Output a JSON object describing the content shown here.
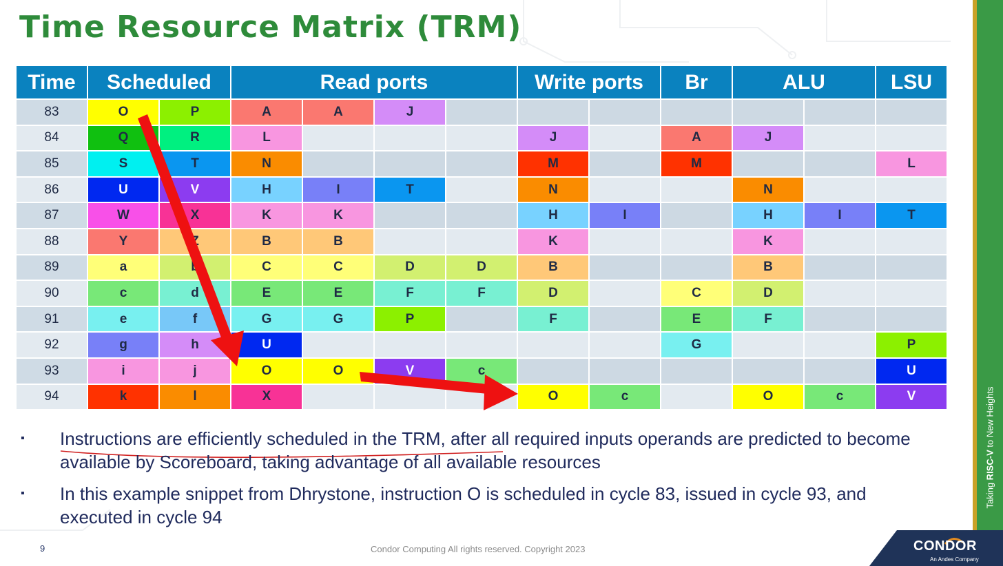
{
  "title": "Time Resource Matrix (TRM)",
  "table": {
    "headers": [
      {
        "label": "Time",
        "span": 1
      },
      {
        "label": "Scheduled",
        "span": 2
      },
      {
        "label": "Read ports",
        "span": 4
      },
      {
        "label": "Write ports",
        "span": 2
      },
      {
        "label": "Br",
        "span": 1
      },
      {
        "label": "ALU",
        "span": 2
      },
      {
        "label": "LSU",
        "span": 1
      }
    ],
    "rows": [
      {
        "time": "83",
        "cells": [
          [
            "O",
            "#ffff00"
          ],
          [
            "P",
            "#8cf000"
          ],
          [
            "A",
            "#fa7870"
          ],
          [
            "A",
            "#fa7870"
          ],
          [
            "J",
            "#d48cf8"
          ],
          [
            "",
            ""
          ],
          [
            "",
            ""
          ],
          [
            "",
            ""
          ],
          [
            "",
            ""
          ],
          [
            "",
            ""
          ],
          [
            "",
            ""
          ],
          [
            "",
            ""
          ]
        ]
      },
      {
        "time": "84",
        "cells": [
          [
            "Q",
            "#10c010"
          ],
          [
            "R",
            "#00f080"
          ],
          [
            "L",
            "#f896e0"
          ],
          [
            "",
            ""
          ],
          [
            "",
            ""
          ],
          [
            "",
            ""
          ],
          [
            "J",
            "#d48cf8"
          ],
          [
            "",
            ""
          ],
          [
            "A",
            "#fa7870"
          ],
          [
            "J",
            "#d48cf8"
          ],
          [
            "",
            ""
          ],
          [
            "",
            ""
          ]
        ]
      },
      {
        "time": "85",
        "cells": [
          [
            "S",
            "#00f0f0"
          ],
          [
            "T",
            "#0a96f0"
          ],
          [
            "N",
            "#fa8c00"
          ],
          [
            "",
            ""
          ],
          [
            "",
            ""
          ],
          [
            "",
            ""
          ],
          [
            "M",
            "#ff3200"
          ],
          [
            "",
            ""
          ],
          [
            "M",
            "#ff3200"
          ],
          [
            "",
            ""
          ],
          [
            "",
            ""
          ],
          [
            "L",
            "#f896e0"
          ]
        ]
      },
      {
        "time": "86",
        "cells": [
          [
            "U",
            "#0028f0"
          ],
          [
            "V",
            "#8c3cf0"
          ],
          [
            "H",
            "#78d2ff"
          ],
          [
            "I",
            "#7880f8"
          ],
          [
            "T",
            "#0a96f0"
          ],
          [
            "",
            ""
          ],
          [
            "N",
            "#fa8c00"
          ],
          [
            "",
            ""
          ],
          [
            "",
            ""
          ],
          [
            "N",
            "#fa8c00"
          ],
          [
            "",
            ""
          ],
          [
            "",
            ""
          ]
        ]
      },
      {
        "time": "87",
        "cells": [
          [
            "W",
            "#f850e8"
          ],
          [
            "X",
            "#f83296"
          ],
          [
            "K",
            "#f896e0"
          ],
          [
            "K",
            "#f896e0"
          ],
          [
            "",
            ""
          ],
          [
            "",
            ""
          ],
          [
            "H",
            "#78d2ff"
          ],
          [
            "I",
            "#7880f8"
          ],
          [
            "",
            ""
          ],
          [
            "H",
            "#78d2ff"
          ],
          [
            "I",
            "#7880f8"
          ],
          [
            "T",
            "#0a96f0"
          ]
        ]
      },
      {
        "time": "88",
        "cells": [
          [
            "Y",
            "#fa7870"
          ],
          [
            "Z",
            "#ffc878"
          ],
          [
            "B",
            "#ffc878"
          ],
          [
            "B",
            "#ffc878"
          ],
          [
            "",
            ""
          ],
          [
            "",
            ""
          ],
          [
            "K",
            "#f896e0"
          ],
          [
            "",
            ""
          ],
          [
            "",
            ""
          ],
          [
            "K",
            "#f896e0"
          ],
          [
            "",
            ""
          ],
          [
            "",
            ""
          ]
        ]
      },
      {
        "time": "89",
        "cells": [
          [
            "a",
            "#ffff78"
          ],
          [
            "b",
            "#d2f070"
          ],
          [
            "C",
            "#ffff78"
          ],
          [
            "C",
            "#ffff78"
          ],
          [
            "D",
            "#d2f070"
          ],
          [
            "D",
            "#d2f070"
          ],
          [
            "B",
            "#ffc878"
          ],
          [
            "",
            ""
          ],
          [
            "",
            ""
          ],
          [
            "B",
            "#ffc878"
          ],
          [
            "",
            ""
          ],
          [
            "",
            ""
          ]
        ]
      },
      {
        "time": "90",
        "cells": [
          [
            "c",
            "#78e878"
          ],
          [
            "d",
            "#78f0d2"
          ],
          [
            "E",
            "#78e878"
          ],
          [
            "E",
            "#78e878"
          ],
          [
            "F",
            "#78f0d2"
          ],
          [
            "F",
            "#78f0d2"
          ],
          [
            "D",
            "#d2f070"
          ],
          [
            "",
            ""
          ],
          [
            "C",
            "#ffff78"
          ],
          [
            "D",
            "#d2f070"
          ],
          [
            "",
            ""
          ],
          [
            "",
            ""
          ]
        ]
      },
      {
        "time": "91",
        "cells": [
          [
            "e",
            "#78f0f0"
          ],
          [
            "f",
            "#78c8f8"
          ],
          [
            "G",
            "#78f0f0"
          ],
          [
            "G",
            "#78f0f0"
          ],
          [
            "P",
            "#8cf000"
          ],
          [
            "",
            ""
          ],
          [
            "F",
            "#78f0d2"
          ],
          [
            "",
            ""
          ],
          [
            "E",
            "#78e878"
          ],
          [
            "F",
            "#78f0d2"
          ],
          [
            "",
            ""
          ],
          [
            "",
            ""
          ]
        ]
      },
      {
        "time": "92",
        "cells": [
          [
            "g",
            "#7880f8"
          ],
          [
            "h",
            "#d48cf8"
          ],
          [
            "U",
            "#0028f0"
          ],
          [
            "",
            ""
          ],
          [
            "",
            ""
          ],
          [
            "",
            ""
          ],
          [
            "",
            ""
          ],
          [
            "",
            ""
          ],
          [
            "G",
            "#78f0f0"
          ],
          [
            "",
            ""
          ],
          [
            "",
            ""
          ],
          [
            "P",
            "#8cf000"
          ]
        ]
      },
      {
        "time": "93",
        "cells": [
          [
            "i",
            "#f896e0"
          ],
          [
            "j",
            "#f896e0"
          ],
          [
            "O",
            "#ffff00"
          ],
          [
            "O",
            "#ffff00"
          ],
          [
            "V",
            "#8c3cf0"
          ],
          [
            "c",
            "#78e878"
          ],
          [
            "",
            ""
          ],
          [
            "",
            ""
          ],
          [
            "",
            ""
          ],
          [
            "",
            ""
          ],
          [
            "",
            ""
          ],
          [
            "U",
            "#0028f0"
          ]
        ]
      },
      {
        "time": "94",
        "cells": [
          [
            "k",
            "#ff3200"
          ],
          [
            "l",
            "#fa8c00"
          ],
          [
            "X",
            "#f83296"
          ],
          [
            "",
            ""
          ],
          [
            "",
            ""
          ],
          [
            "",
            ""
          ],
          [
            "O",
            "#ffff00"
          ],
          [
            "c",
            "#78e878"
          ],
          [
            "",
            ""
          ],
          [
            "O",
            "#ffff00"
          ],
          [
            "c",
            "#78e878"
          ],
          [
            "V",
            "#8c3cf0"
          ]
        ]
      }
    ]
  },
  "bullets": [
    {
      "underlined": "Instructions are efficiently scheduled in the TRM",
      "rest": ", after all required inputs operands are predicted to become available by Scoreboard, taking advantage of all available resources"
    },
    {
      "underlined": "",
      "rest": "In this example snippet from Dhrystone, instruction O is scheduled in cycle 83, issued in cycle 93, and executed in cycle 94"
    }
  ],
  "bullet_marker": "▪",
  "page_number": "9",
  "footer": "Condor Computing  All rights reserved. Copyright 2023",
  "tagline_prefix": "Taking ",
  "tagline_brand": "RISC-V",
  "tagline_suffix": " to New Heights",
  "logo": {
    "name": "CONDOR",
    "sub": "An Andes Company"
  },
  "colors": {
    "title": "#2e8b3a",
    "header": "#0a82bf",
    "arrow": "#ee1111",
    "strip": "#3a9a46",
    "logo_bg": "#1f3358"
  }
}
